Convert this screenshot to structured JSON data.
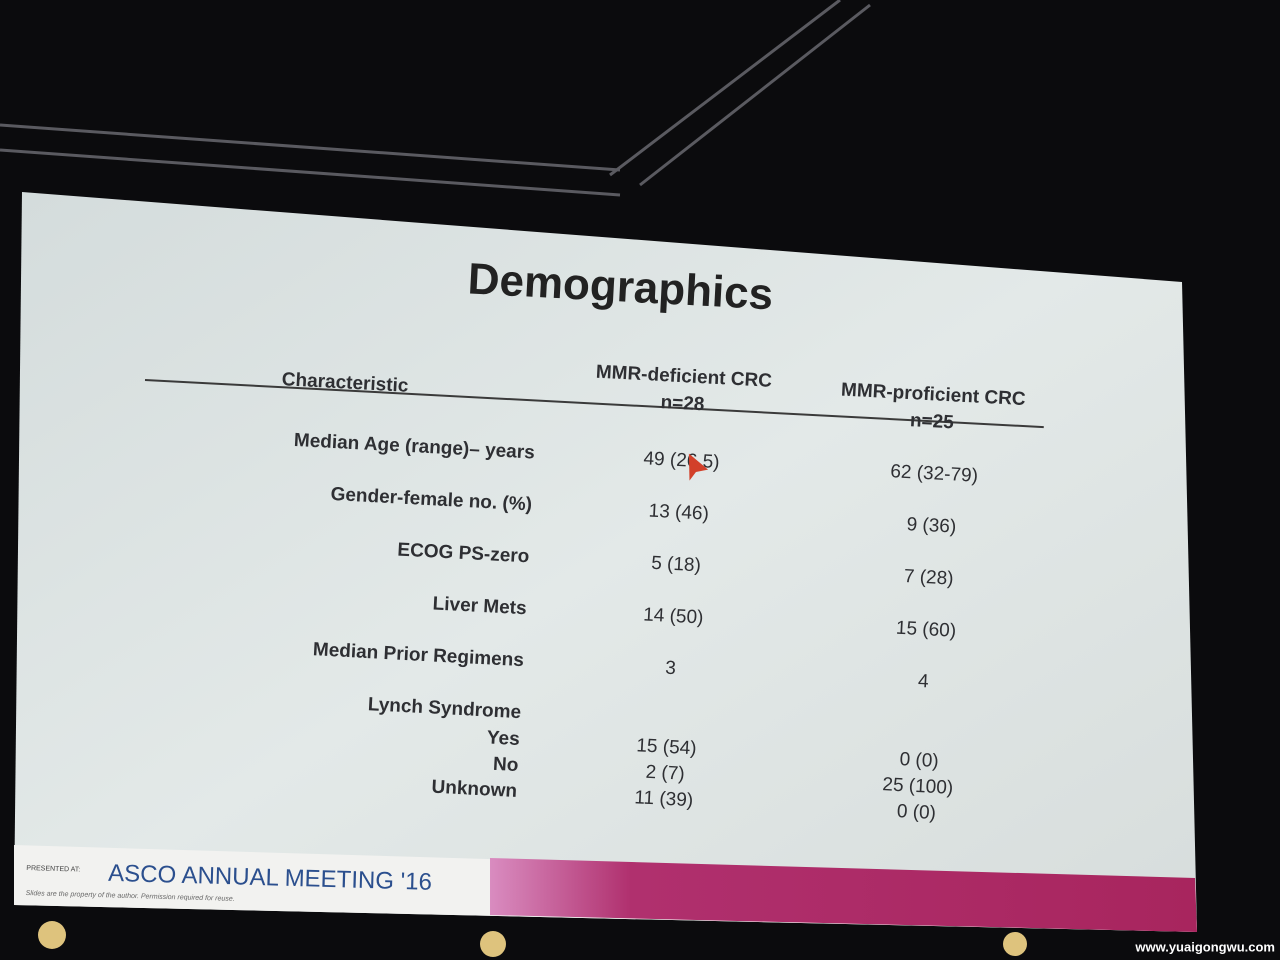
{
  "title": "Demographics",
  "table": {
    "columns": [
      {
        "label": "Characteristic"
      },
      {
        "label": "MMR-deficient CRC",
        "n": "n=28"
      },
      {
        "label": "MMR-proficient CRC",
        "n": "n=25"
      }
    ],
    "rows": [
      [
        "Median Age (range)– years",
        "49 (26  5)",
        "62 (32-79)"
      ],
      [
        "Gender-female no. (%)",
        "13 (46)",
        "9 (36)"
      ],
      [
        "ECOG PS-zero",
        "5 (18)",
        "7 (28)"
      ],
      [
        "Liver Mets",
        "14 (50)",
        "15 (60)"
      ],
      [
        "Median Prior Regimens",
        "3",
        "4"
      ]
    ],
    "group": {
      "label": "Lynch Syndrome",
      "rows": [
        [
          "Yes",
          "15 (54)",
          "0 (0)"
        ],
        [
          "No",
          "2 (7)",
          "25 (100)"
        ],
        [
          "Unknown",
          "11 (39)",
          "0 (0)"
        ]
      ]
    }
  },
  "footer": {
    "presented": "PRESENTED AT:",
    "meeting": "ASCO ANNUAL MEETING '16",
    "note": "Slides are the property of the author. Permission required for reuse."
  },
  "watermark": "www.yuaigongwu.com"
}
